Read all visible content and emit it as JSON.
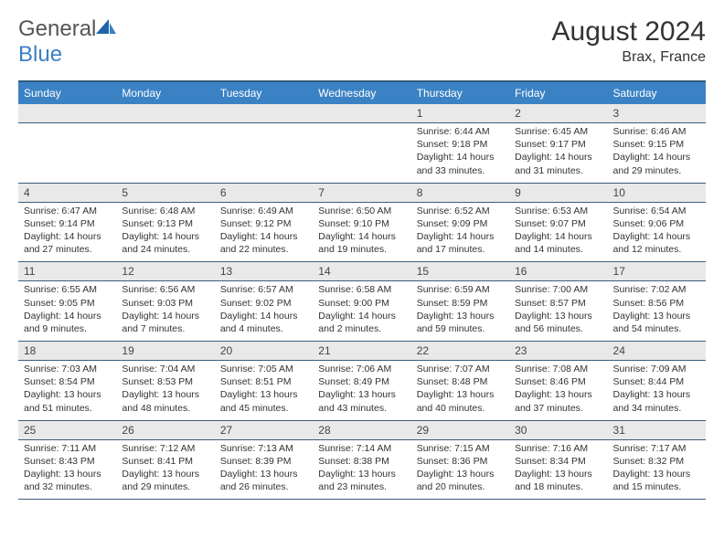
{
  "brand": {
    "part1": "General",
    "part2": "Blue"
  },
  "title": "August 2024",
  "location": "Brax, France",
  "colors": {
    "header_bg": "#3b82c4",
    "header_text": "#ffffff",
    "daynum_bg": "#e9e9e9",
    "row_border": "#3b5e7e",
    "logo_blue": "#3b7fc4",
    "text": "#333333"
  },
  "weekdays": [
    "Sunday",
    "Monday",
    "Tuesday",
    "Wednesday",
    "Thursday",
    "Friday",
    "Saturday"
  ],
  "weeks": [
    [
      {
        "n": "",
        "sr": "",
        "ss": "",
        "dl": ""
      },
      {
        "n": "",
        "sr": "",
        "ss": "",
        "dl": ""
      },
      {
        "n": "",
        "sr": "",
        "ss": "",
        "dl": ""
      },
      {
        "n": "",
        "sr": "",
        "ss": "",
        "dl": ""
      },
      {
        "n": "1",
        "sr": "Sunrise: 6:44 AM",
        "ss": "Sunset: 9:18 PM",
        "dl": "Daylight: 14 hours and 33 minutes."
      },
      {
        "n": "2",
        "sr": "Sunrise: 6:45 AM",
        "ss": "Sunset: 9:17 PM",
        "dl": "Daylight: 14 hours and 31 minutes."
      },
      {
        "n": "3",
        "sr": "Sunrise: 6:46 AM",
        "ss": "Sunset: 9:15 PM",
        "dl": "Daylight: 14 hours and 29 minutes."
      }
    ],
    [
      {
        "n": "4",
        "sr": "Sunrise: 6:47 AM",
        "ss": "Sunset: 9:14 PM",
        "dl": "Daylight: 14 hours and 27 minutes."
      },
      {
        "n": "5",
        "sr": "Sunrise: 6:48 AM",
        "ss": "Sunset: 9:13 PM",
        "dl": "Daylight: 14 hours and 24 minutes."
      },
      {
        "n": "6",
        "sr": "Sunrise: 6:49 AM",
        "ss": "Sunset: 9:12 PM",
        "dl": "Daylight: 14 hours and 22 minutes."
      },
      {
        "n": "7",
        "sr": "Sunrise: 6:50 AM",
        "ss": "Sunset: 9:10 PM",
        "dl": "Daylight: 14 hours and 19 minutes."
      },
      {
        "n": "8",
        "sr": "Sunrise: 6:52 AM",
        "ss": "Sunset: 9:09 PM",
        "dl": "Daylight: 14 hours and 17 minutes."
      },
      {
        "n": "9",
        "sr": "Sunrise: 6:53 AM",
        "ss": "Sunset: 9:07 PM",
        "dl": "Daylight: 14 hours and 14 minutes."
      },
      {
        "n": "10",
        "sr": "Sunrise: 6:54 AM",
        "ss": "Sunset: 9:06 PM",
        "dl": "Daylight: 14 hours and 12 minutes."
      }
    ],
    [
      {
        "n": "11",
        "sr": "Sunrise: 6:55 AM",
        "ss": "Sunset: 9:05 PM",
        "dl": "Daylight: 14 hours and 9 minutes."
      },
      {
        "n": "12",
        "sr": "Sunrise: 6:56 AM",
        "ss": "Sunset: 9:03 PM",
        "dl": "Daylight: 14 hours and 7 minutes."
      },
      {
        "n": "13",
        "sr": "Sunrise: 6:57 AM",
        "ss": "Sunset: 9:02 PM",
        "dl": "Daylight: 14 hours and 4 minutes."
      },
      {
        "n": "14",
        "sr": "Sunrise: 6:58 AM",
        "ss": "Sunset: 9:00 PM",
        "dl": "Daylight: 14 hours and 2 minutes."
      },
      {
        "n": "15",
        "sr": "Sunrise: 6:59 AM",
        "ss": "Sunset: 8:59 PM",
        "dl": "Daylight: 13 hours and 59 minutes."
      },
      {
        "n": "16",
        "sr": "Sunrise: 7:00 AM",
        "ss": "Sunset: 8:57 PM",
        "dl": "Daylight: 13 hours and 56 minutes."
      },
      {
        "n": "17",
        "sr": "Sunrise: 7:02 AM",
        "ss": "Sunset: 8:56 PM",
        "dl": "Daylight: 13 hours and 54 minutes."
      }
    ],
    [
      {
        "n": "18",
        "sr": "Sunrise: 7:03 AM",
        "ss": "Sunset: 8:54 PM",
        "dl": "Daylight: 13 hours and 51 minutes."
      },
      {
        "n": "19",
        "sr": "Sunrise: 7:04 AM",
        "ss": "Sunset: 8:53 PM",
        "dl": "Daylight: 13 hours and 48 minutes."
      },
      {
        "n": "20",
        "sr": "Sunrise: 7:05 AM",
        "ss": "Sunset: 8:51 PM",
        "dl": "Daylight: 13 hours and 45 minutes."
      },
      {
        "n": "21",
        "sr": "Sunrise: 7:06 AM",
        "ss": "Sunset: 8:49 PM",
        "dl": "Daylight: 13 hours and 43 minutes."
      },
      {
        "n": "22",
        "sr": "Sunrise: 7:07 AM",
        "ss": "Sunset: 8:48 PM",
        "dl": "Daylight: 13 hours and 40 minutes."
      },
      {
        "n": "23",
        "sr": "Sunrise: 7:08 AM",
        "ss": "Sunset: 8:46 PM",
        "dl": "Daylight: 13 hours and 37 minutes."
      },
      {
        "n": "24",
        "sr": "Sunrise: 7:09 AM",
        "ss": "Sunset: 8:44 PM",
        "dl": "Daylight: 13 hours and 34 minutes."
      }
    ],
    [
      {
        "n": "25",
        "sr": "Sunrise: 7:11 AM",
        "ss": "Sunset: 8:43 PM",
        "dl": "Daylight: 13 hours and 32 minutes."
      },
      {
        "n": "26",
        "sr": "Sunrise: 7:12 AM",
        "ss": "Sunset: 8:41 PM",
        "dl": "Daylight: 13 hours and 29 minutes."
      },
      {
        "n": "27",
        "sr": "Sunrise: 7:13 AM",
        "ss": "Sunset: 8:39 PM",
        "dl": "Daylight: 13 hours and 26 minutes."
      },
      {
        "n": "28",
        "sr": "Sunrise: 7:14 AM",
        "ss": "Sunset: 8:38 PM",
        "dl": "Daylight: 13 hours and 23 minutes."
      },
      {
        "n": "29",
        "sr": "Sunrise: 7:15 AM",
        "ss": "Sunset: 8:36 PM",
        "dl": "Daylight: 13 hours and 20 minutes."
      },
      {
        "n": "30",
        "sr": "Sunrise: 7:16 AM",
        "ss": "Sunset: 8:34 PM",
        "dl": "Daylight: 13 hours and 18 minutes."
      },
      {
        "n": "31",
        "sr": "Sunrise: 7:17 AM",
        "ss": "Sunset: 8:32 PM",
        "dl": "Daylight: 13 hours and 15 minutes."
      }
    ]
  ]
}
